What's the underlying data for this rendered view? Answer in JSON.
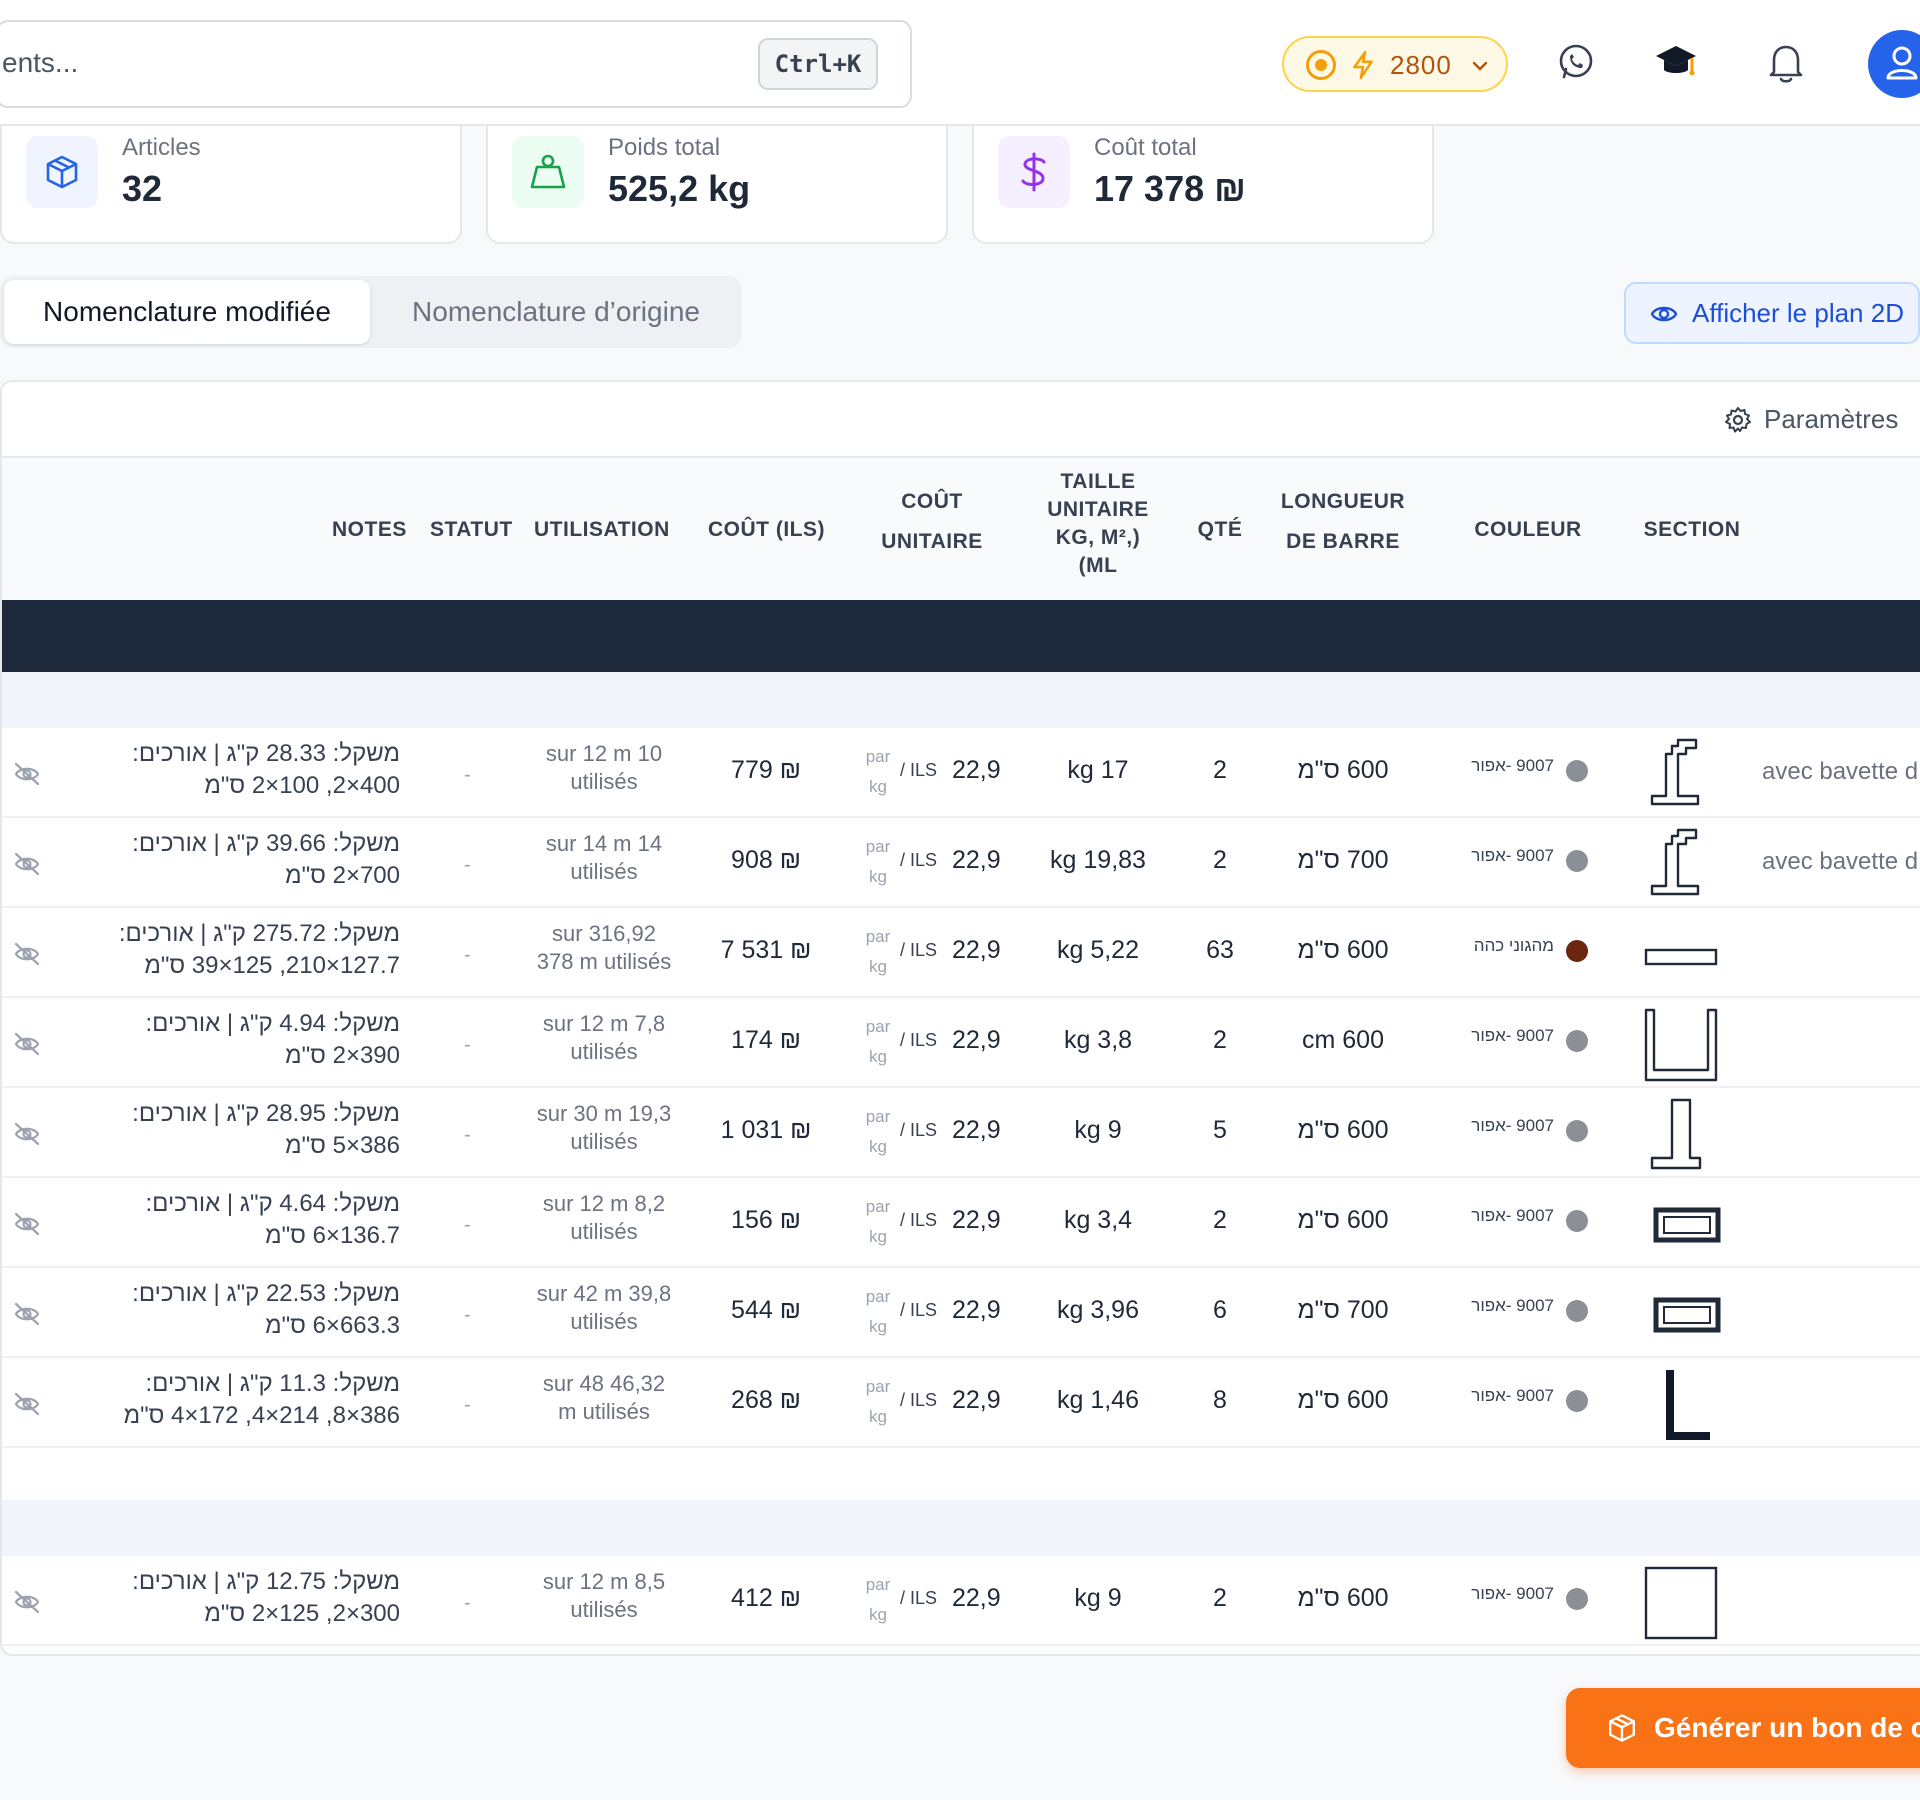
{
  "header": {
    "search_text": "ents...",
    "shortcut": "Ctrl+K",
    "credits": "2800"
  },
  "stats": [
    {
      "label": "Articles",
      "value": "32",
      "icon": "cube-icon",
      "color": "#2563eb"
    },
    {
      "label": "Poids total",
      "value": "525,2 kg",
      "icon": "weight-icon",
      "color": "#16a34a"
    },
    {
      "label": "Coût total",
      "value": "17 378 ₪",
      "icon": "dollar-icon",
      "color": "#9333ea"
    }
  ],
  "tabs": {
    "active": "Nomenclature modifiée",
    "inactive": "Nomenclature d’origine"
  },
  "plan_button": "Afficher le plan 2D",
  "params_label": "Paramètres",
  "columns": {
    "notes": "NOTES",
    "statut": "STATUT",
    "utilisation": "UTILISATION",
    "cout": "COÛT (ILS)",
    "cout_unitaire_1": "COÛT",
    "cout_unitaire_2": "UNITAIRE",
    "taille_1": "TAILLE",
    "taille_2": "UNITAIRE",
    "taille_3": "KG, M²,)",
    "taille_4": "(ML",
    "qte": "QTÉ",
    "longueur_1": "LONGUEUR",
    "longueur_2": "DE BARRE",
    "couleur": "COULEUR",
    "section": "SECTION"
  },
  "rows": [
    {
      "notes1": "משקל: 28.33 ק\"ג | אורכים:",
      "notes2": "400×2, 100×2 ס\"מ",
      "statut": "-",
      "util1": "sur 12 m 10",
      "util2": "utilisés",
      "cost": "779 ₪",
      "par": "par",
      "kg": "kg",
      "ils": "/ ILS",
      "unit": "22,9",
      "size": "kg 17",
      "qty": "2",
      "bar": "600 ס\"מ",
      "color_name": "9007 -אפור",
      "color_hex": "#8b8f96",
      "section_shape": "profile-a",
      "desc": "avec bavette d"
    },
    {
      "notes1": "משקל: 39.66 ק\"ג | אורכים:",
      "notes2": "700×2 ס\"מ",
      "statut": "-",
      "util1": "sur 14 m 14",
      "util2": "utilisés",
      "cost": "908 ₪",
      "par": "par",
      "kg": "kg",
      "ils": "/ ILS",
      "unit": "22,9",
      "size": "kg 19,83",
      "qty": "2",
      "bar": "700 ס\"מ",
      "color_name": "9007 -אפור",
      "color_hex": "#8b8f96",
      "section_shape": "profile-a",
      "desc": "avec bavette d"
    },
    {
      "notes1": "משקל: 275.72 ק\"ג | אורכים:",
      "notes2": "127.7×210, 125×39 ס\"מ",
      "statut": "-",
      "util1": "sur 316,92",
      "util2": "378 m utilisés",
      "cost": "7 531 ₪",
      "par": "par",
      "kg": "kg",
      "ils": "/ ILS",
      "unit": "22,9",
      "size": "kg 5,22",
      "qty": "63",
      "bar": "600 ס\"מ",
      "color_name": "מהגוני כהה",
      "color_hex": "#6b2610",
      "section_shape": "flat-bar",
      "desc": ""
    },
    {
      "notes1": "משקל: 4.94 ק\"ג | אורכים:",
      "notes2": "390×2 ס\"מ",
      "statut": "-",
      "util1": "sur 12 m 7,8",
      "util2": "utilisés",
      "cost": "174 ₪",
      "par": "par",
      "kg": "kg",
      "ils": "/ ILS",
      "unit": "22,9",
      "size": "kg 3,8",
      "qty": "2",
      "bar": "cm 600",
      "color_name": "9007 -אפור",
      "color_hex": "#8b8f96",
      "section_shape": "u-channel",
      "desc": ""
    },
    {
      "notes1": "משקל: 28.95 ק\"ג | אורכים:",
      "notes2": "386×5 ס\"מ",
      "statut": "-",
      "util1": "sur 30 m 19,3",
      "util2": "utilisés",
      "cost": "1 031 ₪",
      "par": "par",
      "kg": "kg",
      "ils": "/ ILS",
      "unit": "22,9",
      "size": "kg 9",
      "qty": "5",
      "bar": "600 ס\"מ",
      "color_name": "9007 -אפור",
      "color_hex": "#8b8f96",
      "section_shape": "mullion",
      "desc": ""
    },
    {
      "notes1": "משקל: 4.64 ק\"ג | אורכים:",
      "notes2": "136.7×6 ס\"מ",
      "statut": "-",
      "util1": "sur 12 m 8,2",
      "util2": "utilisés",
      "cost": "156 ₪",
      "par": "par",
      "kg": "kg",
      "ils": "/ ILS",
      "unit": "22,9",
      "size": "kg 3,4",
      "qty": "2",
      "bar": "600 ס\"מ",
      "color_name": "9007 -אפור",
      "color_hex": "#8b8f96",
      "section_shape": "rect-tube",
      "desc": ""
    },
    {
      "notes1": "משקל: 22.53 ק\"ג | אורכים:",
      "notes2": "663.3×6 ס\"מ",
      "statut": "-",
      "util1": "sur 42 m 39,8",
      "util2": "utilisés",
      "cost": "544 ₪",
      "par": "par",
      "kg": "kg",
      "ils": "/ ILS",
      "unit": "22,9",
      "size": "kg 3,96",
      "qty": "6",
      "bar": "700 ס\"מ",
      "color_name": "9007 -אפור",
      "color_hex": "#8b8f96",
      "section_shape": "rect-tube",
      "desc": ""
    },
    {
      "notes1": "משקל: 11.3 ק\"ג | אורכים:",
      "notes2": "386×8, 214×4, 172×4 ס\"מ",
      "statut": "-",
      "util1": "sur 48 46,32",
      "util2": "m utilisés",
      "cost": "268 ₪",
      "par": "par",
      "kg": "kg",
      "ils": "/ ILS",
      "unit": "22,9",
      "size": "kg 1,46",
      "qty": "8",
      "bar": "600 ס\"מ",
      "color_name": "9007 -אפור",
      "color_hex": "#8b8f96",
      "section_shape": "angle",
      "desc": ""
    },
    {
      "notes1": "משקל: 12.75 ק\"ג | אורכים:",
      "notes2": "300×2, 125×2 ס\"מ",
      "statut": "-",
      "util1": "sur 12 m 8,5",
      "util2": "utilisés",
      "cost": "412 ₪",
      "par": "par",
      "kg": "kg",
      "ils": "/ ILS",
      "unit": "22,9",
      "size": "kg 9",
      "qty": "2",
      "bar": "600 ס\"מ",
      "color_name": "9007 -אפור",
      "color_hex": "#8b8f96",
      "section_shape": "square",
      "desc": ""
    }
  ],
  "cta_label": "Générer un bon de co"
}
